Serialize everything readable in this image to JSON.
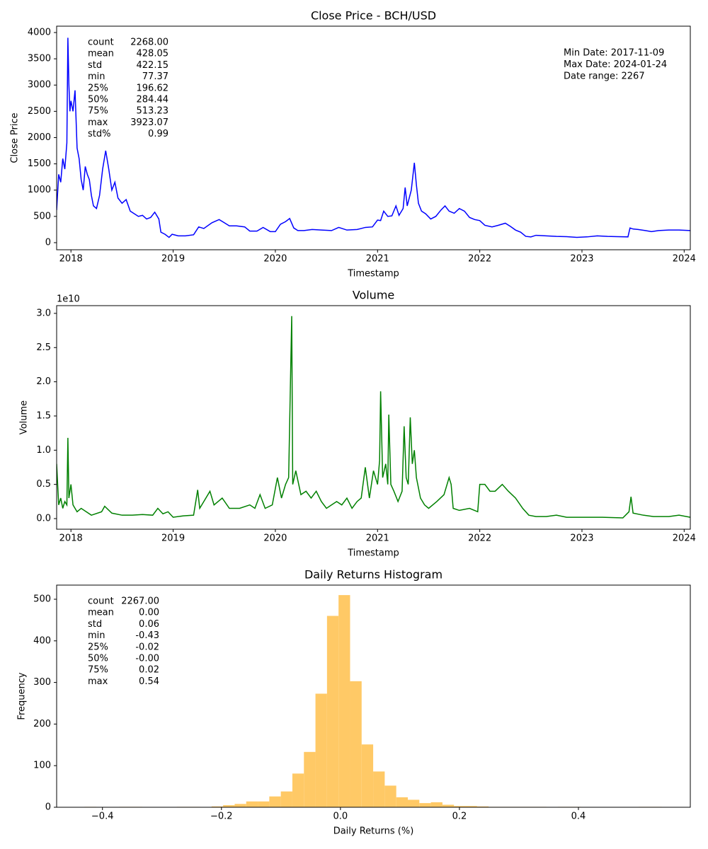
{
  "chart_data": [
    {
      "type": "line",
      "title": "Close Price - BCH/USD",
      "xlabel": "Timestamp",
      "ylabel": "Close Price",
      "color": "#0000ff",
      "xlim": [
        2017.86,
        2024.06
      ],
      "xticks": [
        2018,
        2019,
        2020,
        2021,
        2022,
        2023,
        2024
      ],
      "ylim": [
        -135,
        4121
      ],
      "yticks": [
        0,
        500,
        1000,
        1500,
        2000,
        2500,
        3000,
        3500,
        4000
      ],
      "x": [
        2017.86,
        2017.88,
        2017.9,
        2017.92,
        2017.94,
        2017.96,
        2017.97,
        2017.98,
        2017.99,
        2018.0,
        2018.02,
        2018.04,
        2018.06,
        2018.08,
        2018.1,
        2018.12,
        2018.14,
        2018.16,
        2018.18,
        2018.2,
        2018.22,
        2018.25,
        2018.28,
        2018.31,
        2018.34,
        2018.37,
        2018.4,
        2018.43,
        2018.46,
        2018.5,
        2018.54,
        2018.58,
        2018.62,
        2018.66,
        2018.7,
        2018.74,
        2018.78,
        2018.82,
        2018.86,
        2018.88,
        2018.92,
        2018.96,
        2018.99,
        2019.05,
        2019.12,
        2019.2,
        2019.25,
        2019.3,
        2019.38,
        2019.45,
        2019.5,
        2019.55,
        2019.62,
        2019.7,
        2019.75,
        2019.82,
        2019.88,
        2019.95,
        2020.0,
        2020.05,
        2020.1,
        2020.14,
        2020.18,
        2020.22,
        2020.28,
        2020.36,
        2020.45,
        2020.55,
        2020.62,
        2020.7,
        2020.8,
        2020.88,
        2020.95,
        2021.0,
        2021.03,
        2021.06,
        2021.1,
        2021.14,
        2021.18,
        2021.21,
        2021.25,
        2021.27,
        2021.29,
        2021.33,
        2021.36,
        2021.38,
        2021.4,
        2021.43,
        2021.47,
        2021.52,
        2021.57,
        2021.62,
        2021.66,
        2021.7,
        2021.75,
        2021.8,
        2021.85,
        2021.9,
        2021.95,
        2022.0,
        2022.05,
        2022.12,
        2022.18,
        2022.25,
        2022.3,
        2022.35,
        2022.4,
        2022.45,
        2022.5,
        2022.55,
        2022.65,
        2022.75,
        2022.85,
        2022.95,
        2023.05,
        2023.15,
        2023.25,
        2023.35,
        2023.45,
        2023.47,
        2023.5,
        2023.55,
        2023.62,
        2023.68,
        2023.75,
        2023.85,
        2023.95,
        2024.06
      ],
      "values": [
        620,
        1300,
        1150,
        1600,
        1400,
        1900,
        3900,
        3000,
        2500,
        2700,
        2500,
        2900,
        1800,
        1600,
        1200,
        1000,
        1450,
        1300,
        1200,
        900,
        700,
        650,
        900,
        1400,
        1750,
        1400,
        1000,
        1150,
        850,
        750,
        820,
        600,
        550,
        500,
        520,
        450,
        480,
        580,
        450,
        200,
        160,
        100,
        160,
        130,
        130,
        150,
        300,
        270,
        380,
        440,
        380,
        320,
        320,
        300,
        220,
        220,
        290,
        210,
        210,
        350,
        400,
        460,
        280,
        230,
        230,
        250,
        240,
        230,
        290,
        240,
        250,
        290,
        300,
        430,
        420,
        600,
        500,
        510,
        700,
        520,
        650,
        1050,
        700,
        1000,
        1520,
        1100,
        750,
        600,
        550,
        450,
        500,
        620,
        700,
        600,
        560,
        650,
        600,
        480,
        440,
        420,
        330,
        300,
        330,
        370,
        310,
        240,
        200,
        120,
        110,
        140,
        130,
        120,
        115,
        100,
        110,
        130,
        120,
        115,
        110,
        280,
        260,
        250,
        230,
        210,
        230,
        240,
        240,
        230
      ],
      "stats": [
        {
          "label": "count",
          "value": "2268.00"
        },
        {
          "label": "mean",
          "value": "428.05"
        },
        {
          "label": "std",
          "value": "422.15"
        },
        {
          "label": "min",
          "value": "77.37"
        },
        {
          "label": "25%",
          "value": "196.62"
        },
        {
          "label": "50%",
          "value": "284.44"
        },
        {
          "label": "75%",
          "value": "513.23"
        },
        {
          "label": "max",
          "value": "3923.07"
        },
        {
          "label": "std%",
          "value": "0.99"
        }
      ],
      "annotations": [
        "Min Date: 2017-11-09",
        "Max Date: 2024-01-24",
        "Date range: 2267"
      ]
    },
    {
      "type": "line",
      "title": "Volume",
      "xlabel": "Timestamp",
      "ylabel": "Volume",
      "color": "#008000",
      "offset_label": "1e10",
      "xlim": [
        2017.86,
        2024.06
      ],
      "xticks": [
        2018,
        2019,
        2020,
        2021,
        2022,
        2023,
        2024
      ],
      "ylim": [
        -1550000000.0,
        31130000000.0
      ],
      "yticks": [
        {
          "value": 0,
          "label": "0.0"
        },
        {
          "value": 5000000000.0,
          "label": "0.5"
        },
        {
          "value": 10000000000.0,
          "label": "1.0"
        },
        {
          "value": 15000000000.0,
          "label": "1.5"
        },
        {
          "value": 20000000000.0,
          "label": "2.0"
        },
        {
          "value": 25000000000.0,
          "label": "2.5"
        },
        {
          "value": 30000000000.0,
          "label": "3.0"
        }
      ],
      "x": [
        2017.86,
        2017.88,
        2017.9,
        2017.92,
        2017.94,
        2017.96,
        2017.97,
        2017.98,
        2018.0,
        2018.02,
        2018.06,
        2018.1,
        2018.2,
        2018.3,
        2018.33,
        2018.4,
        2018.5,
        2018.6,
        2018.7,
        2018.8,
        2018.85,
        2018.9,
        2018.95,
        2019.0,
        2019.1,
        2019.2,
        2019.24,
        2019.26,
        2019.3,
        2019.36,
        2019.4,
        2019.48,
        2019.55,
        2019.65,
        2019.75,
        2019.8,
        2019.85,
        2019.9,
        2019.97,
        2020.02,
        2020.06,
        2020.1,
        2020.13,
        2020.16,
        2020.17,
        2020.2,
        2020.25,
        2020.3,
        2020.35,
        2020.4,
        2020.45,
        2020.5,
        2020.55,
        2020.6,
        2020.65,
        2020.7,
        2020.75,
        2020.8,
        2020.84,
        2020.88,
        2020.92,
        2020.96,
        2021.0,
        2021.02,
        2021.03,
        2021.05,
        2021.08,
        2021.1,
        2021.11,
        2021.13,
        2021.16,
        2021.2,
        2021.24,
        2021.26,
        2021.28,
        2021.3,
        2021.32,
        2021.34,
        2021.36,
        2021.38,
        2021.42,
        2021.46,
        2021.5,
        2021.58,
        2021.65,
        2021.7,
        2021.72,
        2021.74,
        2021.8,
        2021.9,
        2021.98,
        2022.0,
        2022.05,
        2022.1,
        2022.15,
        2022.22,
        2022.28,
        2022.35,
        2022.42,
        2022.48,
        2022.55,
        2022.65,
        2022.75,
        2022.85,
        2023.0,
        2023.2,
        2023.4,
        2023.46,
        2023.48,
        2023.5,
        2023.6,
        2023.7,
        2023.85,
        2023.95,
        2024.06
      ],
      "values": [
        8000000000.0,
        2000000000.0,
        3000000000.0,
        1500000000.0,
        2500000000.0,
        2000000000.0,
        11800000000.0,
        3000000000.0,
        5000000000.0,
        2000000000.0,
        1000000000.0,
        1500000000.0,
        500000000.0,
        1000000000.0,
        1800000000.0,
        800000000.0,
        500000000.0,
        500000000.0,
        600000000.0,
        500000000.0,
        1500000000.0,
        700000000.0,
        1000000000.0,
        200000000.0,
        400000000.0,
        500000000.0,
        4200000000.0,
        1500000000.0,
        2500000000.0,
        4000000000.0,
        2000000000.0,
        3000000000.0,
        1500000000.0,
        1500000000.0,
        2000000000.0,
        1500000000.0,
        3500000000.0,
        1500000000.0,
        2000000000.0,
        6000000000.0,
        3000000000.0,
        5000000000.0,
        6000000000.0,
        29600000000.0,
        5000000000.0,
        7000000000.0,
        3500000000.0,
        4000000000.0,
        3000000000.0,
        4000000000.0,
        2500000000.0,
        1500000000.0,
        2000000000.0,
        2500000000.0,
        2000000000.0,
        3000000000.0,
        1500000000.0,
        2500000000.0,
        3000000000.0,
        7500000000.0,
        3000000000.0,
        7000000000.0,
        5000000000.0,
        8500000000.0,
        18600000000.0,
        6000000000.0,
        8000000000.0,
        5000000000.0,
        15200000000.0,
        5000000000.0,
        4000000000.0,
        2500000000.0,
        4000000000.0,
        13500000000.0,
        6000000000.0,
        5000000000.0,
        14800000000.0,
        8000000000.0,
        10000000000.0,
        6000000000.0,
        3000000000.0,
        2000000000.0,
        1500000000.0,
        2500000000.0,
        3500000000.0,
        6000000000.0,
        5000000000.0,
        1500000000.0,
        1200000000.0,
        1500000000.0,
        1000000000.0,
        5000000000.0,
        5000000000.0,
        4000000000.0,
        4000000000.0,
        5000000000.0,
        4000000000.0,
        3000000000.0,
        1500000000.0,
        500000000.0,
        300000000.0,
        300000000.0,
        500000000.0,
        200000000.0,
        200000000.0,
        200000000.0,
        100000000.0,
        1000000000.0,
        3200000000.0,
        800000000.0,
        500000000.0,
        300000000.0,
        300000000.0,
        500000000.0,
        200000000.0
      ]
    },
    {
      "type": "histogram",
      "title": "Daily Returns Histogram",
      "xlabel": "Daily Returns (%)",
      "ylabel": "Frequency",
      "color": "#ffc966",
      "xlim": [
        -0.477,
        0.588
      ],
      "xticks": [
        {
          "value": -0.4,
          "label": "−0.4"
        },
        {
          "value": -0.2,
          "label": "−0.2"
        },
        {
          "value": 0,
          "label": "0.0"
        },
        0.2,
        0.4
      ],
      "ylim": [
        0,
        534
      ],
      "yticks": [
        0,
        100,
        200,
        300,
        400,
        500
      ],
      "bins": [
        -0.43,
        -0.4106,
        -0.3912,
        -0.3718,
        -0.3524,
        -0.333,
        -0.3136,
        -0.2942,
        -0.2748,
        -0.2554,
        -0.236,
        -0.2166,
        -0.1972,
        -0.1778,
        -0.1584,
        -0.139,
        -0.1196,
        -0.1002,
        -0.0808,
        -0.0614,
        -0.042,
        -0.0226,
        -0.0032,
        0.0162,
        0.0356,
        0.055,
        0.0744,
        0.0938,
        0.1132,
        0.1326,
        0.152,
        0.1714,
        0.1908,
        0.2102,
        0.2296,
        0.249,
        0.2684,
        0.2878,
        0.3072,
        0.3266,
        0.346,
        0.3654,
        0.3848,
        0.4042,
        0.4236,
        0.443,
        0.4624,
        0.4818,
        0.5012,
        0.5206,
        0.54
      ],
      "values": [
        1,
        0,
        0,
        1,
        1,
        0,
        0,
        0,
        1,
        1,
        0,
        2,
        5,
        8,
        14,
        14,
        26,
        38,
        81,
        133,
        273,
        460,
        510,
        303,
        151,
        86,
        52,
        24,
        18,
        10,
        12,
        6,
        3,
        3,
        2,
        1,
        1,
        1,
        1,
        1,
        0,
        1,
        1,
        0,
        0,
        0,
        0,
        0,
        1,
        1
      ],
      "stats": [
        {
          "label": "count",
          "value": "2267.00"
        },
        {
          "label": "mean",
          "value": "0.00"
        },
        {
          "label": "std",
          "value": "0.06"
        },
        {
          "label": "min",
          "value": "-0.43"
        },
        {
          "label": "25%",
          "value": "-0.02"
        },
        {
          "label": "50%",
          "value": "-0.00"
        },
        {
          "label": "75%",
          "value": "0.02"
        },
        {
          "label": "max",
          "value": "0.54"
        }
      ]
    }
  ]
}
